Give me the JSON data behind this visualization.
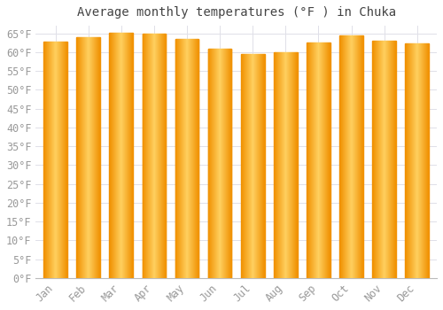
{
  "title": "Average monthly temperatures (°F ) in Chuka",
  "months": [
    "Jan",
    "Feb",
    "Mar",
    "Apr",
    "May",
    "Jun",
    "Jul",
    "Aug",
    "Sep",
    "Oct",
    "Nov",
    "Dec"
  ],
  "values": [
    62.8,
    64.0,
    65.1,
    65.0,
    63.5,
    61.0,
    59.5,
    60.0,
    62.5,
    64.5,
    63.0,
    62.2
  ],
  "bar_color_center": "#FFD060",
  "bar_color_edge": "#F09000",
  "background_color": "#FFFFFF",
  "plot_bg_color": "#FFFFFF",
  "grid_color": "#E0E0E8",
  "text_color": "#999999",
  "title_color": "#444444",
  "ylim_min": 0,
  "ylim_max": 67,
  "ytick_step": 5,
  "title_fontsize": 10,
  "tick_fontsize": 8.5
}
